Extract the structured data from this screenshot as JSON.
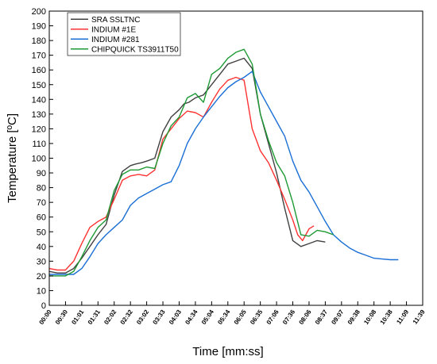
{
  "chart_data": {
    "type": "line",
    "xlabel": "Time [mm:ss]",
    "ylabel": "Temperature [ºC]",
    "x_tick_labels": [
      "00:00",
      "00:30",
      "01:01",
      "01:31",
      "02:02",
      "02:32",
      "03:02",
      "03:33",
      "04:03",
      "04:34",
      "05:04",
      "05:34",
      "06:05",
      "06:35",
      "07:06",
      "07:36",
      "08:06",
      "08:37",
      "09:07",
      "09:38",
      "10:08",
      "10:38",
      "11:09",
      "11:39"
    ],
    "xlim": [
      0,
      23
    ],
    "ylim": [
      0,
      200
    ],
    "y_ticks": [
      0,
      10,
      20,
      30,
      40,
      50,
      60,
      70,
      80,
      90,
      100,
      110,
      120,
      130,
      140,
      150,
      160,
      170,
      180,
      190,
      200
    ],
    "grid": false,
    "legend_position": "top-left",
    "series": [
      {
        "name": "SRA SSLTNC",
        "color": "#404040",
        "x": [
          0,
          0.5,
          1,
          1.5,
          2,
          2.5,
          3,
          3.5,
          4,
          4.5,
          5,
          5.3,
          5.7,
          6,
          6.5,
          7,
          7.5,
          8,
          8.3,
          8.6,
          9,
          9.5,
          10,
          10.5,
          11,
          11.5,
          12,
          12.5,
          13,
          13.5,
          14,
          14.5,
          15,
          15.5,
          16,
          16.5,
          17
        ],
        "y": [
          23,
          22,
          22,
          25,
          32,
          40,
          48,
          55,
          75,
          91,
          95,
          96,
          97,
          98,
          100,
          118,
          128,
          133,
          137,
          138,
          141,
          143,
          150,
          157,
          164,
          166,
          168,
          161,
          130,
          110,
          90,
          66,
          44,
          40,
          42,
          44,
          43
        ]
      },
      {
        "name": "INDIUM #1E",
        "color": "#ff3333",
        "x": [
          0,
          0.5,
          1,
          1.5,
          2,
          2.5,
          3,
          3.5,
          4,
          4.5,
          5,
          5.5,
          6,
          6.5,
          7,
          7.5,
          8,
          8.5,
          9,
          9.5,
          10,
          10.5,
          11,
          11.5,
          12,
          12.5,
          13,
          13.5,
          14,
          14.5,
          15,
          15.3,
          15.6,
          16,
          16.3
        ],
        "y": [
          25,
          24,
          24,
          30,
          42,
          53,
          57,
          60,
          72,
          85,
          88,
          89,
          88,
          92,
          113,
          120,
          127,
          132,
          131,
          128,
          138,
          147,
          153,
          155,
          153,
          120,
          105,
          97,
          85,
          72,
          58,
          48,
          44,
          52,
          54
        ]
      },
      {
        "name": "INDIUM #281",
        "color": "#1a6fd6",
        "x": [
          0,
          0.5,
          1,
          1.5,
          2,
          2.5,
          3,
          3.5,
          4,
          4.5,
          5,
          5.5,
          6,
          6.5,
          7,
          7.5,
          8,
          8.5,
          9,
          9.5,
          10,
          10.5,
          11,
          11.5,
          12,
          12.5,
          13,
          13.5,
          14,
          14.5,
          15,
          15.5,
          16,
          16.5,
          17,
          17.5,
          18,
          18.5,
          19,
          19.5,
          20,
          20.5,
          21,
          21.5
        ],
        "y": [
          21,
          21,
          21,
          21,
          25,
          33,
          42,
          48,
          53,
          58,
          68,
          73,
          76,
          79,
          82,
          84,
          95,
          110,
          120,
          128,
          135,
          142,
          148,
          152,
          155,
          159,
          145,
          135,
          125,
          115,
          98,
          85,
          77,
          67,
          57,
          48,
          43,
          39,
          36,
          34,
          32,
          31.5,
          31,
          31
        ]
      },
      {
        "name": "CHIPQUICK TS3911T50",
        "color": "#1e9a35",
        "x": [
          0,
          0.5,
          1,
          1.5,
          2,
          2.5,
          3,
          3.5,
          4,
          4.5,
          5,
          5.5,
          6,
          6.5,
          7,
          7.5,
          8,
          8.5,
          9,
          9.5,
          10,
          10.5,
          11,
          11.5,
          12,
          12.5,
          13,
          13.5,
          14,
          14.5,
          15,
          15.5,
          16,
          16.5,
          17,
          17.5
        ],
        "y": [
          20,
          20,
          20,
          23,
          33,
          44,
          53,
          58,
          78,
          89,
          92,
          92,
          94,
          93,
          110,
          122,
          128,
          141,
          144,
          138,
          157,
          161,
          168,
          172,
          174,
          164,
          130,
          112,
          97,
          88,
          70,
          48,
          47,
          51,
          50,
          48
        ]
      }
    ]
  }
}
